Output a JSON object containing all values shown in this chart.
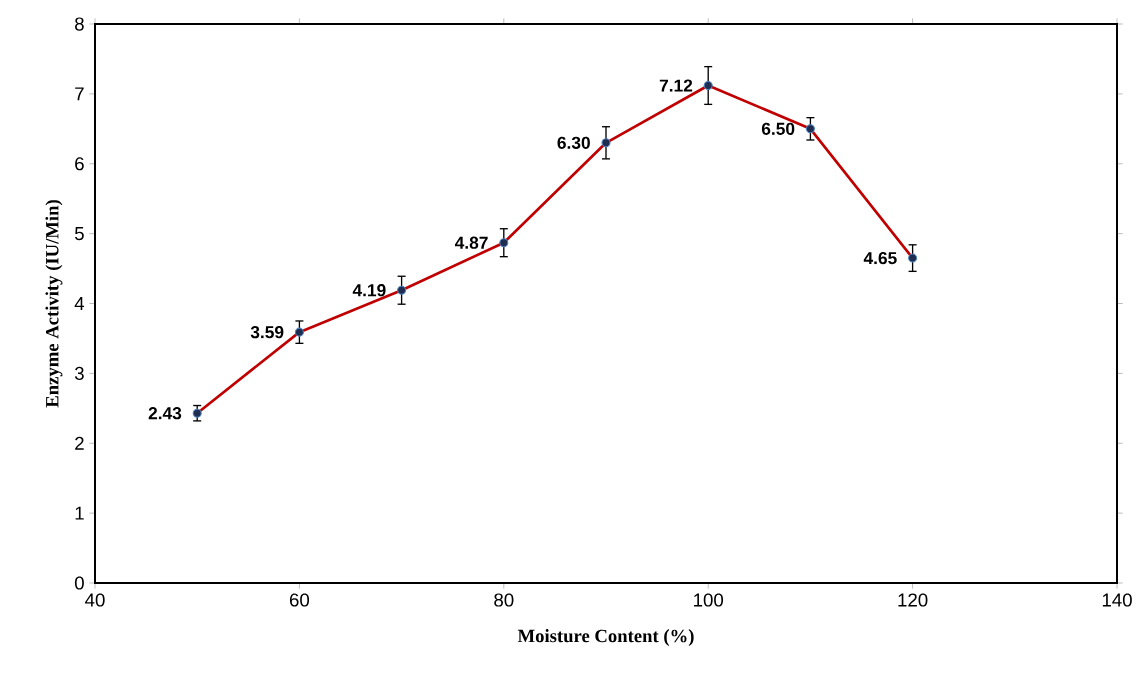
{
  "chart_data": {
    "type": "line",
    "xlabel": "Moisture Content (%)",
    "ylabel": "Enzyme Activity (IU/Min)",
    "x": [
      50,
      60,
      70,
      80,
      90,
      100,
      110,
      120
    ],
    "series": [
      {
        "color": "#c00000",
        "values": [
          2.43,
          3.59,
          4.19,
          4.87,
          6.3,
          7.12,
          6.5,
          4.65
        ],
        "errors": [
          0.11,
          0.16,
          0.2,
          0.2,
          0.23,
          0.27,
          0.16,
          0.19
        ],
        "value_labels": [
          "2.43",
          "3.59",
          "4.19",
          "4.87",
          "6.30",
          "7.12",
          "6.50",
          "4.65"
        ]
      }
    ],
    "xlim": [
      40,
      140
    ],
    "xticks": [
      40,
      60,
      80,
      100,
      120,
      140
    ],
    "ylim": [
      0,
      8
    ],
    "yticks": [
      0,
      1,
      2,
      3,
      4,
      5,
      6,
      7,
      8
    ],
    "marker": "circle",
    "line_style": "solid"
  }
}
